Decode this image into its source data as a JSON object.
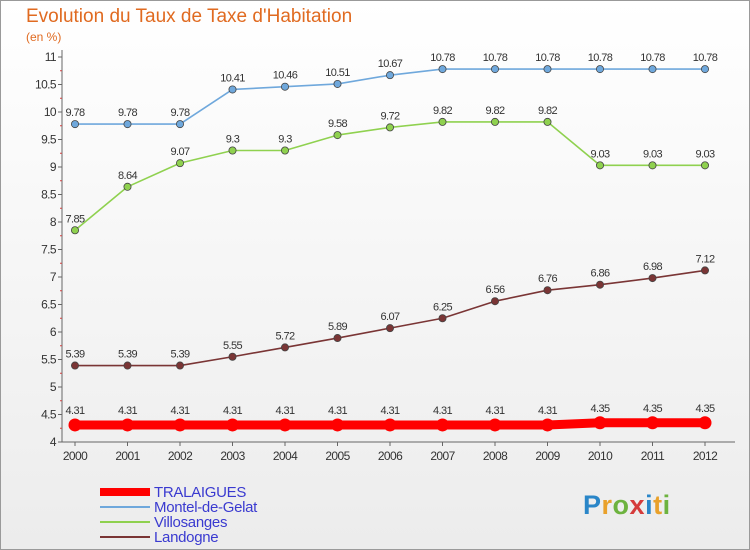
{
  "chart_data": {
    "type": "line",
    "title": "Evolution du Taux de Taxe d'Habitation",
    "subtitle": "(en %)",
    "x": [
      "2000",
      "2001",
      "2002",
      "2003",
      "2004",
      "2005",
      "2006",
      "2007",
      "2008",
      "2009",
      "2010",
      "2011",
      "2012"
    ],
    "yticks": [
      "4",
      "4.5",
      "5",
      "5.5",
      "6",
      "6.5",
      "7",
      "7.5",
      "8",
      "8.5",
      "9",
      "9.5",
      "10",
      "10.5",
      "11"
    ],
    "ylim": [
      4,
      11
    ],
    "grid": false,
    "legend_position": "bottom-left",
    "series": [
      {
        "name": "TRALAIGUES",
        "color": "#ff0000",
        "values": [
          4.31,
          4.31,
          4.31,
          4.31,
          4.31,
          4.31,
          4.31,
          4.31,
          4.31,
          4.31,
          4.35,
          4.35,
          4.35
        ],
        "labels": [
          "4.31",
          "4.31",
          "4.31",
          "4.31",
          "4.31",
          "4.31",
          "4.31",
          "4.31",
          "4.31",
          "4.31",
          "4.35",
          "4.35",
          "4.35"
        ]
      },
      {
        "name": "Montel-de-Gelat",
        "color": "#6fa8dc",
        "values": [
          9.78,
          9.78,
          9.78,
          10.41,
          10.46,
          10.51,
          10.67,
          10.78,
          10.78,
          10.78,
          10.78,
          10.78,
          10.78
        ],
        "labels": [
          "9.78",
          "9.78",
          "9.78",
          "10.41",
          "10.46",
          "10.51",
          "10.67",
          "10.78",
          "10.78",
          "10.78",
          "10.78",
          "10.78",
          "10.78"
        ]
      },
      {
        "name": "Villosanges",
        "color": "#8fd14f",
        "values": [
          7.85,
          8.64,
          9.07,
          9.3,
          9.3,
          9.58,
          9.72,
          9.82,
          9.82,
          9.82,
          9.03,
          9.03,
          9.03
        ],
        "labels": [
          "7.85",
          "8.64",
          "9.07",
          "9.3",
          "9.3",
          "9.58",
          "9.72",
          "9.82",
          "9.82",
          "9.82",
          "9.03",
          "9.03",
          "9.03"
        ]
      },
      {
        "name": "Landogne",
        "color": "#7a3535",
        "values": [
          5.39,
          5.39,
          5.39,
          5.55,
          5.72,
          5.89,
          6.07,
          6.25,
          6.56,
          6.76,
          6.86,
          6.98,
          7.12
        ],
        "labels": [
          "5.39",
          "5.39",
          "5.39",
          "5.55",
          "5.72",
          "5.89",
          "6.07",
          "6.25",
          "6.56",
          "6.76",
          "6.86",
          "6.98",
          "7.12"
        ]
      }
    ]
  },
  "logo": {
    "text": "Proxiti",
    "letters": [
      "P",
      "r",
      "o",
      "x",
      "i",
      "t",
      "i"
    ]
  }
}
